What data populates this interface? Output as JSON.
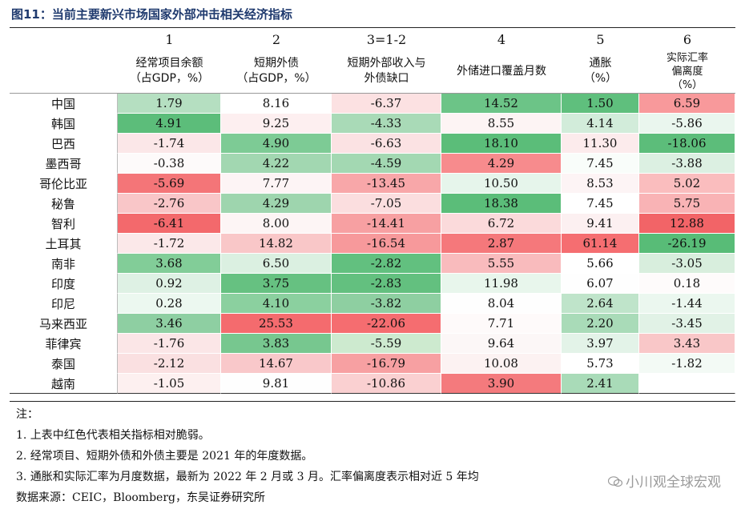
{
  "title": "图11：当前主要新兴市场国家外部冲击相关经济指标",
  "columns": [
    {
      "num": "1",
      "label": "经常项目余额\n（占GDP，%）"
    },
    {
      "num": "2",
      "label": "短期外债\n（占GDP，%）"
    },
    {
      "num": "3=1-2",
      "label": "短期外部收入与\n外债缺口"
    },
    {
      "num": "4",
      "label": "外储进口覆盖月数"
    },
    {
      "num": "5",
      "label": "通胀\n（%）"
    },
    {
      "num": "6",
      "label": "实际汇率\n偏离度\n（%）"
    }
  ],
  "rows": [
    {
      "country": "中国",
      "values": [
        "1.79",
        "8.16",
        "-6.37",
        "14.52",
        "1.50",
        "6.59"
      ]
    },
    {
      "country": "韩国",
      "values": [
        "4.91",
        "9.25",
        "-4.33",
        "8.55",
        "4.14",
        "-5.86"
      ]
    },
    {
      "country": "巴西",
      "values": [
        "-1.74",
        "4.90",
        "-6.63",
        "18.10",
        "11.30",
        "-18.06"
      ]
    },
    {
      "country": "墨西哥",
      "values": [
        "-0.38",
        "4.22",
        "-4.59",
        "4.29",
        "7.45",
        "-3.88"
      ]
    },
    {
      "country": "哥伦比亚",
      "values": [
        "-5.69",
        "7.77",
        "-13.45",
        "10.50",
        "8.53",
        "5.02"
      ]
    },
    {
      "country": "秘鲁",
      "values": [
        "-2.76",
        "4.29",
        "-7.05",
        "18.38",
        "7.45",
        "5.75"
      ]
    },
    {
      "country": "智利",
      "values": [
        "-6.41",
        "8.00",
        "-14.41",
        "6.72",
        "9.41",
        "12.88"
      ]
    },
    {
      "country": "土耳其",
      "values": [
        "-1.72",
        "14.82",
        "-16.54",
        "2.87",
        "61.14",
        "-26.19"
      ]
    },
    {
      "country": "南非",
      "values": [
        "3.68",
        "6.50",
        "-2.82",
        "5.55",
        "5.66",
        "-3.05"
      ]
    },
    {
      "country": "印度",
      "values": [
        "0.92",
        "3.75",
        "-2.83",
        "11.98",
        "6.07",
        "0.18"
      ]
    },
    {
      "country": "印尼",
      "values": [
        "0.28",
        "4.10",
        "-3.82",
        "8.04",
        "2.64",
        "-1.44"
      ]
    },
    {
      "country": "马来西亚",
      "values": [
        "3.46",
        "25.53",
        "-22.06",
        "7.71",
        "2.20",
        "-3.45"
      ]
    },
    {
      "country": "菲律宾",
      "values": [
        "-1.76",
        "3.83",
        "-5.59",
        "9.64",
        "3.97",
        "3.43"
      ]
    },
    {
      "country": "泰国",
      "values": [
        "-2.12",
        "14.67",
        "-16.79",
        "10.08",
        "5.73",
        "-1.82"
      ]
    },
    {
      "country": "越南",
      "values": [
        "-1.05",
        "9.81",
        "-10.86",
        "3.90",
        "2.41",
        ""
      ]
    }
  ],
  "cell_colors": [
    [
      "#b5dfc1",
      "#ffffff",
      "#fce1e2",
      "#6cc487",
      "#5fbf7d",
      "#f8999b"
    ],
    [
      "#5cbd7a",
      "#fdeff0",
      "#a9dab7",
      "#fdf4f4",
      "#d2ecda",
      "#eaf6ee"
    ],
    [
      "#fbe7e8",
      "#7dcb95",
      "#fbe2e3",
      "#5bbd79",
      "#fcebec",
      "#5cbd7a"
    ],
    [
      "#fdfafa",
      "#a2d7b1",
      "#a3d8b2",
      "#f78b8d",
      "#f9fdfa",
      "#dcf0e2"
    ],
    [
      "#f47578",
      "#fdf4f5",
      "#f8a7a9",
      "#e6f5eb",
      "#fdf4f5",
      "#fabdbe"
    ],
    [
      "#f9c6c8",
      "#9ed5ae",
      "#fbdedf",
      "#5bbd79",
      "#ffffff",
      "#f9b3b5"
    ],
    [
      "#f3696c",
      "#fdf5f5",
      "#f7a0a2",
      "#fbdadb",
      "#fcf0f1",
      "#f26467"
    ],
    [
      "#fbe8e9",
      "#f9c7c8",
      "#f7999b",
      "#f5787b",
      "#f56e71",
      "#58bc77"
    ],
    [
      "#82cd98",
      "#dbf0e1",
      "#62c07f",
      "#f9bbbd",
      "#ffffff",
      "#d8eedd"
    ],
    [
      "#def1e4",
      "#66c181",
      "#63c07f",
      "#e8f6ec",
      "#fefefe",
      "#fefbfb"
    ],
    [
      "#ecf8f0",
      "#8bd09f",
      "#8ecfa1",
      "#fefefe",
      "#bfe4ca",
      "#ebf7ef"
    ],
    [
      "#8ecfa2",
      "#f46b6e",
      "#f56d70",
      "#fefafa",
      "#a9dbb8",
      "#e1f2e6"
    ],
    [
      "#fbe6e7",
      "#77c78f",
      "#cdeacf",
      "#fcf7f7",
      "#e3f3e8",
      "#f9c7c8"
    ],
    [
      "#fae0e1",
      "#f9c8ca",
      "#f7a0a2",
      "#fcf2f2",
      "#ffffff",
      "#f3faf5"
    ],
    [
      "#fdf0f0",
      "#fefefe",
      "#fad0d1",
      "#f47a7d",
      "#a9dbb8",
      "#ffffff"
    ]
  ],
  "notes": [
    "注：",
    "1. 上表中红色代表相关指标相对脆弱。",
    "2. 经常项目、短期外债和外债主要是 2021 年的年度数据。",
    "3. 通胀和实际汇率为月度数据，最新为 2022 年 2 月或 3 月。汇率偏离度表示相对近 5 年均",
    "数据来源：CEIC，Bloomberg，东吴证券研究所"
  ],
  "watermark": "小川观全球宏观",
  "watermark_icon": "wechat-icon"
}
